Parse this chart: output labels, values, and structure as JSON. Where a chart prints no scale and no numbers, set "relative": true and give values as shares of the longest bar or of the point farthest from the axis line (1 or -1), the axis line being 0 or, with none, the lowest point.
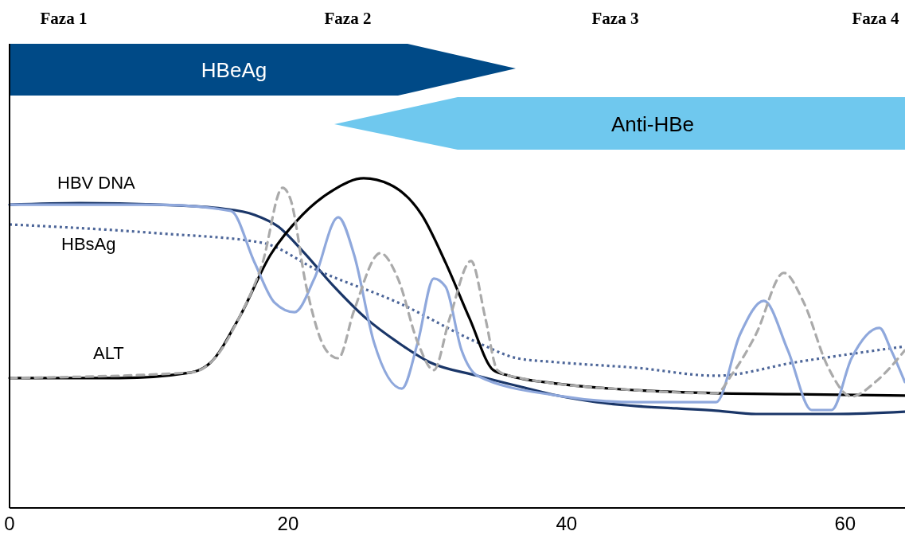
{
  "chart_data": {
    "type": "line",
    "relative": true,
    "xlim": [
      0,
      64.3
    ],
    "xticks": [
      0,
      20,
      40,
      60
    ],
    "series": [
      {
        "name": "HBV DNA",
        "color": "#1a3668",
        "line_style": "solid",
        "x": [
          0,
          5.03,
          10.74,
          15.31,
          17.6,
          19.31,
          21.03,
          23.31,
          25.6,
          27.89,
          30.17,
          33.6,
          36.46,
          39.31,
          42.17,
          45.03,
          47.89,
          50.74,
          53.6,
          59.31,
          64.29
        ],
        "values": [
          0.92,
          0.925,
          0.92,
          0.908,
          0.889,
          0.853,
          0.78,
          0.671,
          0.575,
          0.502,
          0.442,
          0.401,
          0.37,
          0.341,
          0.321,
          0.309,
          0.302,
          0.295,
          0.285,
          0.285,
          0.292
        ]
      },
      {
        "name": "HBsAg",
        "color": "#4d6699",
        "line_style": "dotted",
        "x": [
          0,
          10.74,
          18.17,
          22.17,
          27.89,
          33.6,
          36.46,
          39.31,
          45.03,
          50.74,
          56.46,
          64.29
        ],
        "values": [
          0.86,
          0.833,
          0.804,
          0.72,
          0.623,
          0.502,
          0.454,
          0.442,
          0.425,
          0.401,
          0.442,
          0.49
        ]
      },
      {
        "name": "ALT",
        "color": "#000000",
        "line_style": "solid",
        "x": [
          0,
          7.89,
          13.03,
          14.46,
          16.46,
          18.74,
          21.03,
          23.31,
          25.43,
          27.31,
          29.6,
          31.31,
          33.03,
          34.74,
          35.89,
          39.31,
          45.03,
          50.74,
          56.46,
          64.29
        ],
        "values": [
          0.394,
          0.394,
          0.411,
          0.442,
          0.575,
          0.768,
          0.889,
          0.966,
          1.0,
          0.981,
          0.889,
          0.744,
          0.575,
          0.418,
          0.401,
          0.377,
          0.357,
          0.348,
          0.345,
          0.341
        ]
      },
      {
        "color": "#8fa8dc",
        "line_style": "solid",
        "x": [
          0,
          10.74,
          15.89,
          17.6,
          19.03,
          20.46,
          21.89,
          23.6,
          24.74,
          26.17,
          28.17,
          29.31,
          30.46,
          31.31,
          32.46,
          33.6,
          39.31,
          45.03,
          50.74,
          52.46,
          54.17,
          55.89,
          57.6,
          59.03,
          60.46,
          62.46,
          63.31,
          64.29
        ],
        "values": [
          0.92,
          0.92,
          0.901,
          0.744,
          0.623,
          0.594,
          0.696,
          0.882,
          0.768,
          0.502,
          0.362,
          0.502,
          0.696,
          0.671,
          0.478,
          0.401,
          0.341,
          0.321,
          0.321,
          0.527,
          0.628,
          0.478,
          0.297,
          0.297,
          0.454,
          0.546,
          0.478,
          0.382
        ]
      },
      {
        "color": "#aaaaaa",
        "line_style": "dashed",
        "x": [
          0,
          13.03,
          14.74,
          16.46,
          18.17,
          19.6,
          20.17,
          21.31,
          22.74,
          23.6,
          24.74,
          26.63,
          27.89,
          29.31,
          30.46,
          31.6,
          33.14,
          34.17,
          35.03,
          35.89,
          45.03,
          50.74,
          51.89,
          53.6,
          55.6,
          57.03,
          58.74,
          60.46,
          62.17,
          64.29
        ],
        "values": [
          0.394,
          0.411,
          0.454,
          0.575,
          0.744,
          0.971,
          0.937,
          0.671,
          0.478,
          0.454,
          0.599,
          0.773,
          0.696,
          0.502,
          0.418,
          0.575,
          0.749,
          0.575,
          0.418,
          0.401,
          0.357,
          0.348,
          0.406,
          0.527,
          0.713,
          0.623,
          0.43,
          0.338,
          0.382,
          0.478
        ]
      }
    ],
    "annotations": [
      "Faza 1",
      "Faza 2",
      "Faza 3",
      "Faza 4",
      "HBeAg",
      "Anti-HBe"
    ]
  }
}
